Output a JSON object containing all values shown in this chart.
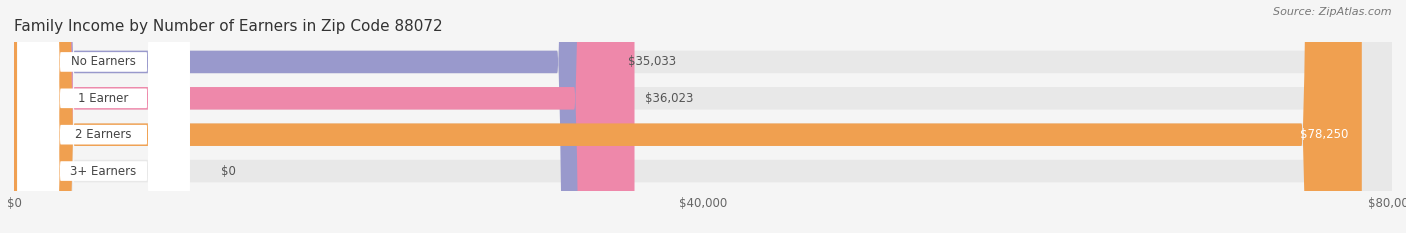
{
  "title": "Family Income by Number of Earners in Zip Code 88072",
  "source": "Source: ZipAtlas.com",
  "categories": [
    "No Earners",
    "1 Earner",
    "2 Earners",
    "3+ Earners"
  ],
  "values": [
    35033,
    36023,
    78250,
    0
  ],
  "bar_colors": [
    "#9999cc",
    "#ee88aa",
    "#f0a050",
    "#ee9999"
  ],
  "bar_bg_color": "#e8e8e8",
  "value_labels": [
    "$35,033",
    "$36,023",
    "$78,250",
    "$0"
  ],
  "xlim": [
    0,
    80000
  ],
  "xticks": [
    0,
    40000,
    80000
  ],
  "xtick_labels": [
    "$0",
    "$40,000",
    "$80,000"
  ],
  "figsize": [
    14.06,
    2.33
  ],
  "dpi": 100,
  "title_fontsize": 11,
  "source_fontsize": 8,
  "bar_label_fontsize": 8.5,
  "value_fontsize": 8.5,
  "tick_fontsize": 8.5,
  "background_color": "#f5f5f5"
}
